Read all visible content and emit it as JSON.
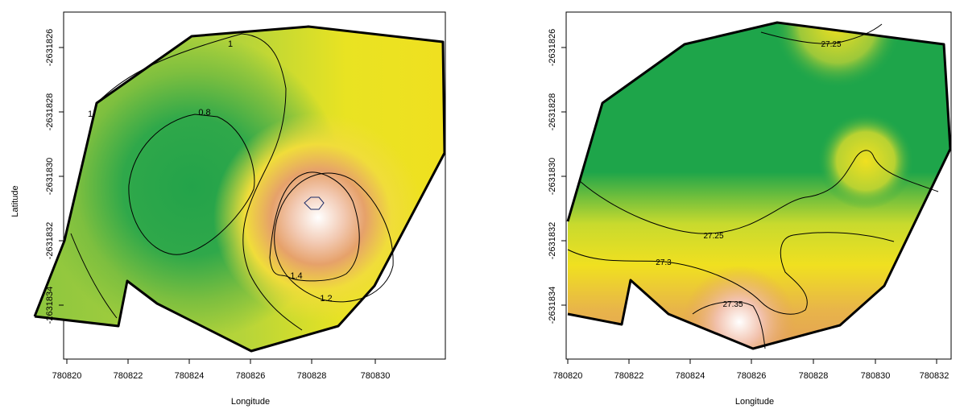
{
  "panels": [
    {
      "id": "left",
      "xlabel": "Longitude",
      "ylabel": "Latitude",
      "x_ticks": [
        "780820",
        "780822",
        "780824",
        "780826",
        "780828",
        "780830"
      ],
      "y_ticks": [
        "-2631826",
        "-2631828",
        "-2631830",
        "-2631832",
        "-2631834"
      ],
      "contour_labels": [
        "1",
        "0.8",
        "1",
        "1.4",
        "1.2"
      ]
    },
    {
      "id": "right",
      "xlabel": "Longitude",
      "ylabel": "",
      "x_ticks": [
        "780820",
        "780822",
        "780824",
        "780826",
        "780828",
        "780830",
        "780832"
      ],
      "y_ticks": [
        "-2631826",
        "-2631828",
        "-2631830",
        "-2631832",
        "-2631834"
      ],
      "contour_labels": [
        "27.25",
        "27.25",
        "27.3",
        "27.35"
      ]
    }
  ],
  "colors": {
    "low": "#1ea54a",
    "mid_green": "#7cc23f",
    "yellow": "#f2e81e",
    "orange": "#e0a060",
    "high": "#ffffff",
    "contour": "#000000",
    "boundary": "#000000"
  }
}
